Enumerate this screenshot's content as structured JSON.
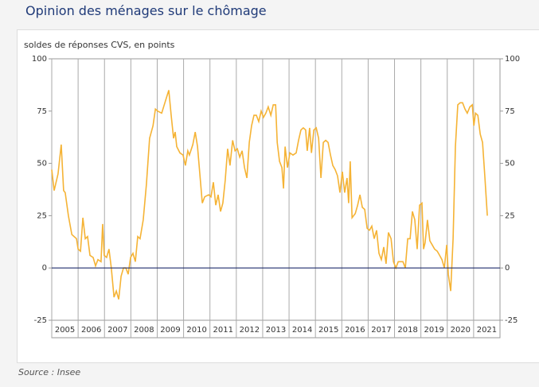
{
  "title": "Opinion des ménages sur le chômage",
  "source": "Source : Insee",
  "chart_data": {
    "type": "line",
    "ylabel": "soldes de réponses CVS, en points",
    "color": "#f5b335",
    "zero_line_color": "#1f2d6b",
    "xlim": [
      2005,
      2022
    ],
    "xticks": [
      2005,
      2006,
      2007,
      2008,
      2009,
      2010,
      2011,
      2012,
      2013,
      2014,
      2015,
      2016,
      2017,
      2018,
      2019,
      2020,
      2021
    ],
    "ylim": [
      -25,
      100
    ],
    "yticks": [
      -25,
      0,
      25,
      50,
      75,
      100
    ],
    "x": [
      2005.0,
      2005.09,
      2005.24,
      2005.36,
      2005.45,
      2005.51,
      2005.63,
      2005.76,
      2005.94,
      2006.0,
      2006.09,
      2006.18,
      2006.27,
      2006.36,
      2006.45,
      2006.57,
      2006.66,
      2006.75,
      2006.87,
      2006.93,
      2006.99,
      2007.08,
      2007.17,
      2007.26,
      2007.36,
      2007.45,
      2007.54,
      2007.63,
      2007.72,
      2007.81,
      2007.9,
      2007.99,
      2008.08,
      2008.17,
      2008.26,
      2008.35,
      2008.47,
      2008.59,
      2008.71,
      2008.84,
      2008.93,
      2009.02,
      2009.17,
      2009.29,
      2009.44,
      2009.53,
      2009.62,
      2009.68,
      2009.74,
      2009.86,
      2009.98,
      2010.07,
      2010.16,
      2010.22,
      2010.35,
      2010.44,
      2010.53,
      2010.59,
      2010.65,
      2010.71,
      2010.8,
      2010.95,
      2011.04,
      2011.13,
      2011.22,
      2011.31,
      2011.4,
      2011.49,
      2011.58,
      2011.67,
      2011.76,
      2011.86,
      2011.95,
      2012.04,
      2012.13,
      2012.22,
      2012.31,
      2012.4,
      2012.49,
      2012.58,
      2012.67,
      2012.76,
      2012.85,
      2012.94,
      2013.03,
      2013.12,
      2013.21,
      2013.31,
      2013.4,
      2013.49,
      2013.55,
      2013.64,
      2013.73,
      2013.79,
      2013.85,
      2013.94,
      2014.03,
      2014.15,
      2014.27,
      2014.36,
      2014.45,
      2014.54,
      2014.63,
      2014.69,
      2014.78,
      2014.85,
      2014.94,
      2015.03,
      2015.12,
      2015.21,
      2015.3,
      2015.39,
      2015.48,
      2015.57,
      2015.66,
      2015.75,
      2015.84,
      2015.93,
      2016.02,
      2016.11,
      2016.2,
      2016.26,
      2016.32,
      2016.39,
      2016.51,
      2016.6,
      2016.69,
      2016.78,
      2016.87,
      2016.96,
      2017.05,
      2017.14,
      2017.23,
      2017.32,
      2017.41,
      2017.5,
      2017.59,
      2017.68,
      2017.77,
      2017.87,
      2017.96,
      2018.05,
      2018.14,
      2018.23,
      2018.32,
      2018.41,
      2018.5,
      2018.59,
      2018.68,
      2018.77,
      2018.86,
      2018.95,
      2019.04,
      2019.1,
      2019.16,
      2019.25,
      2019.34,
      2019.43,
      2019.52,
      2019.62,
      2019.71,
      2019.8,
      2019.89,
      2019.98,
      2020.04,
      2020.13,
      2020.22,
      2020.31,
      2020.4,
      2020.49,
      2020.58,
      2020.67,
      2020.76,
      2020.86,
      2020.95,
      2021.01,
      2021.07,
      2021.16,
      2021.25,
      2021.34,
      2021.43,
      2021.52
    ],
    "values": [
      47,
      37,
      45,
      59,
      37,
      36,
      25,
      16,
      14,
      9,
      8,
      24,
      14,
      15,
      6,
      5,
      1,
      4,
      3,
      21,
      6,
      5,
      9,
      0,
      -14,
      -11,
      -15,
      -4,
      0,
      0,
      -3,
      5,
      7,
      3,
      15,
      14,
      23,
      40,
      62,
      68,
      76,
      75,
      74,
      79,
      85,
      73,
      62,
      65,
      58,
      55,
      54,
      49,
      56,
      54,
      59,
      65,
      58,
      49,
      40,
      31,
      34,
      35,
      34,
      41,
      30,
      35,
      27,
      31,
      42,
      57,
      49,
      61,
      56,
      57,
      53,
      56,
      48,
      43,
      60,
      68,
      73,
      73,
      70,
      75,
      72,
      74,
      77,
      73,
      78,
      78,
      60,
      51,
      48,
      38,
      58,
      48,
      55,
      54,
      55,
      61,
      66,
      67,
      66,
      56,
      67,
      55,
      66,
      67,
      62,
      43,
      60,
      61,
      60,
      54,
      49,
      47,
      44,
      36,
      46,
      36,
      43,
      31,
      51,
      24,
      26,
      30,
      35,
      29,
      28,
      19,
      18,
      20,
      14,
      18,
      7,
      4,
      10,
      2,
      17,
      14,
      3,
      0,
      3,
      3,
      3,
      0,
      14,
      14,
      27,
      23,
      9,
      30,
      31,
      9,
      12,
      23,
      13,
      11,
      9,
      8,
      6,
      4,
      0,
      11,
      -3,
      -11,
      14,
      58,
      78,
      79,
      79,
      76,
      74,
      77,
      78,
      68,
      74,
      73,
      64,
      60,
      43,
      25
    ]
  }
}
